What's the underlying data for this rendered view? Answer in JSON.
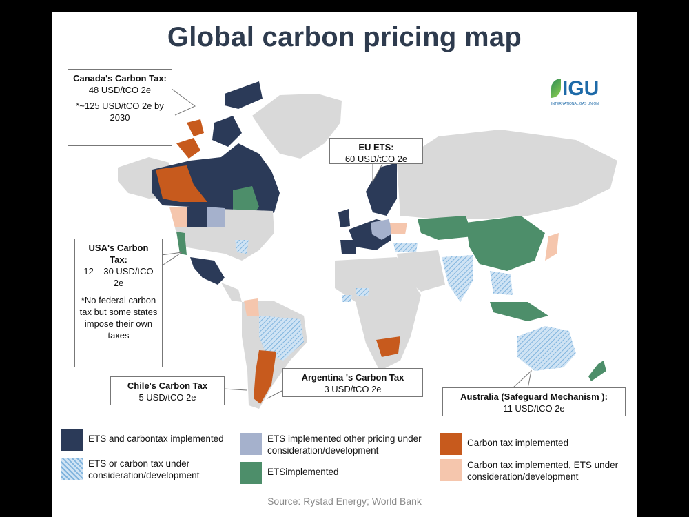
{
  "title": "Global carbon pricing map",
  "logo": {
    "text": "IGU",
    "subtitle": "INTERNATIONAL GAS UNION"
  },
  "callouts": {
    "canada": {
      "head": "Canada's Carbon Tax:",
      "line1": "48 USD/tCO 2e",
      "line2": "*~125 USD/tCO 2e by 2030"
    },
    "eu": {
      "head": "EU ETS:",
      "line1": "60 USD/tCO 2e"
    },
    "usa": {
      "head": "USA's Carbon Tax:",
      "line1": "12 – 30 USD/tCO 2e",
      "line2": "*No federal carbon tax but some states impose their own taxes"
    },
    "chile": {
      "head": "Chile's Carbon Tax",
      "line1": "5 USD/tCO 2e"
    },
    "argentina": {
      "head": "Argentina 's Carbon Tax",
      "line1": "3 USD/tCO 2e"
    },
    "australia": {
      "head": "Australia (Safeguard Mechanism ):",
      "line1": "11 USD/tCO 2e"
    }
  },
  "legend": [
    {
      "label": "ETS and carbontax implemented",
      "color": "#2b3a58"
    },
    {
      "label": "ETS or carbon tax under consideration/development",
      "color": "#a9cbe8",
      "pattern": "hatch"
    },
    {
      "label": "ETS implemented other pricing under consideration/development",
      "color": "#a5b1cc"
    },
    {
      "label": "ETSimplemented",
      "color": "#4d8e6a"
    },
    {
      "label": "Carbon tax implemented",
      "color": "#c75a1d"
    },
    {
      "label": "Carbon tax implemented, ETS under consideration/development",
      "color": "#f5c6ad"
    }
  ],
  "source": "Source: Rystad Energy; World Bank",
  "colors": {
    "land_default": "#d9d9d9",
    "ets_and_tax": "#2b3a58",
    "under_consideration": "#a9cbe8",
    "ets_other_pricing": "#a5b1cc",
    "ets": "#4d8e6a",
    "tax": "#c75a1d",
    "tax_ets_consideration": "#f5c6ad"
  }
}
